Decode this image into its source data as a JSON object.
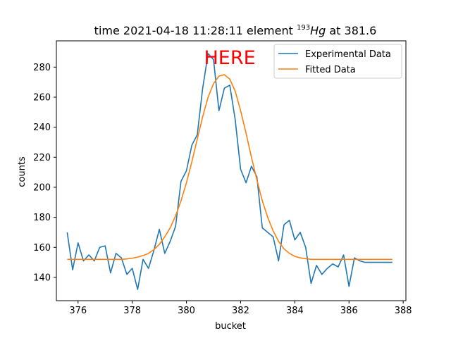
{
  "chart_data": {
    "type": "line",
    "title": {
      "prefix": "time 2021-04-18 11:28:11 element ",
      "mass_number": "193",
      "symbol": "Hg",
      "suffix": " at 381.6"
    },
    "xlabel": "bucket",
    "ylabel": "counts",
    "xlim": [
      375.2,
      388.1
    ],
    "ylim": [
      124.5,
      297.5
    ],
    "xticks": [
      376,
      378,
      380,
      382,
      384,
      386,
      388
    ],
    "yticks": [
      140,
      160,
      180,
      200,
      220,
      240,
      260,
      280
    ],
    "grid": false,
    "legend_placement": "top-right",
    "annotation": {
      "text": "HERE",
      "x": 381.6,
      "y": 282,
      "color": "#ff0000"
    },
    "series": [
      {
        "name": "Experimental Data",
        "color": "#1f77b4",
        "x": [
          375.6,
          375.8,
          376.0,
          376.2,
          376.4,
          376.6,
          376.8,
          377.0,
          377.2,
          377.4,
          377.6,
          377.8,
          378.0,
          378.2,
          378.4,
          378.6,
          378.8,
          379.0,
          379.2,
          379.4,
          379.6,
          379.8,
          380.0,
          380.2,
          380.4,
          380.6,
          380.8,
          381.0,
          381.2,
          381.4,
          381.6,
          381.8,
          382.0,
          382.2,
          382.4,
          382.6,
          382.8,
          383.0,
          383.2,
          383.4,
          383.6,
          383.8,
          384.0,
          384.2,
          384.4,
          384.6,
          384.8,
          385.0,
          385.2,
          385.4,
          385.6,
          385.8,
          386.0,
          386.2,
          386.4,
          386.6,
          386.8,
          387.0,
          387.2,
          387.4,
          387.6
        ],
        "y": [
          170,
          145,
          163,
          151,
          155,
          151,
          160,
          161,
          143,
          156,
          153,
          142,
          146,
          132,
          152,
          146,
          158,
          172,
          156,
          164,
          174,
          204,
          211,
          228,
          235,
          266,
          289,
          285,
          251,
          266,
          268,
          245,
          212,
          203,
          214,
          207,
          173,
          170,
          167,
          151,
          175,
          178,
          165,
          170,
          160,
          136,
          148,
          142,
          146,
          149,
          147,
          155,
          134,
          153,
          151,
          150,
          150,
          150,
          150,
          150,
          150
        ]
      },
      {
        "name": "Fitted Data",
        "color": "#ff7f0e",
        "x": [
          375.6,
          375.8,
          376.0,
          376.2,
          376.4,
          376.6,
          376.8,
          377.0,
          377.2,
          377.4,
          377.6,
          377.8,
          378.0,
          378.2,
          378.4,
          378.6,
          378.8,
          379.0,
          379.2,
          379.4,
          379.6,
          379.8,
          380.0,
          380.2,
          380.4,
          380.6,
          380.8,
          381.0,
          381.2,
          381.4,
          381.6,
          381.8,
          382.0,
          382.2,
          382.4,
          382.6,
          382.8,
          383.0,
          383.2,
          383.4,
          383.6,
          383.8,
          384.0,
          384.2,
          384.4,
          384.6,
          384.8,
          385.0,
          385.2,
          385.4,
          385.6,
          385.8,
          386.0,
          386.2,
          386.4,
          386.6,
          386.8,
          387.0,
          387.2,
          387.4,
          387.6
        ],
        "y": [
          152,
          152,
          152,
          152,
          152,
          152,
          152,
          152,
          152,
          152,
          152,
          152.3,
          152.8,
          153.5,
          154.5,
          156,
          158.5,
          162,
          167,
          173,
          181,
          191,
          203,
          217,
          232,
          247,
          260,
          269,
          274,
          275,
          272,
          264,
          251,
          236,
          220,
          205,
          191,
          180,
          171,
          164,
          159,
          156,
          154,
          153,
          152.5,
          152,
          152,
          152,
          152,
          152,
          152,
          152,
          152,
          152,
          152,
          152,
          152,
          152,
          152,
          152,
          152
        ]
      }
    ]
  }
}
